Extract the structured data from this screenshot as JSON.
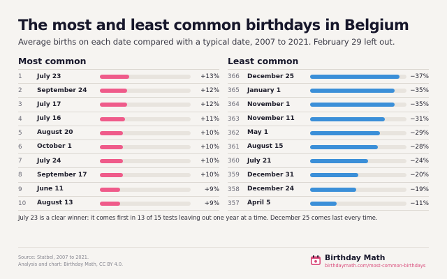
{
  "title": "The most and least common birthdays in Belgium",
  "subtitle": "Average births on each date compared with a typical date, 2007 to 2021. February 29 left out.",
  "colors": {
    "most": "#ef5b8a",
    "least": "#3b8fd8",
    "track": "#e8e4de"
  },
  "chart_data": [
    {
      "type": "bar",
      "title": "Most common",
      "ranks": [
        1,
        2,
        3,
        4,
        5,
        6,
        7,
        8,
        9,
        10
      ],
      "categories": [
        "July 23",
        "September 24",
        "July 17",
        "July 16",
        "August 20",
        "October 1",
        "July 24",
        "September 17",
        "June 11",
        "August 13"
      ],
      "values": [
        13,
        12,
        12,
        11,
        10,
        10,
        10,
        10,
        9,
        9
      ],
      "value_labels": [
        "+13%",
        "+12%",
        "+12%",
        "+11%",
        "+10%",
        "+10%",
        "+10%",
        "+10%",
        "+9%",
        "+9%"
      ],
      "unit": "%",
      "xlim": [
        0,
        40
      ]
    },
    {
      "type": "bar",
      "title": "Least common",
      "ranks": [
        366,
        365,
        364,
        363,
        362,
        361,
        360,
        359,
        358,
        357
      ],
      "categories": [
        "December 25",
        "January 1",
        "November 1",
        "November 11",
        "May 1",
        "August 15",
        "July 21",
        "December 31",
        "December 24",
        "April 5"
      ],
      "values": [
        -37,
        -35,
        -35,
        -31,
        -29,
        -28,
        -24,
        -20,
        -19,
        -11
      ],
      "value_labels": [
        "−37%",
        "−35%",
        "−35%",
        "−31%",
        "−29%",
        "−28%",
        "−24%",
        "−20%",
        "−19%",
        "−11%"
      ],
      "unit": "%",
      "xlim": [
        0,
        40
      ]
    }
  ],
  "note": "July 23 is a clear winner: it comes first in 13 of 15 tests leaving out one year at a time. December 25 comes last every time.",
  "source": {
    "line1": "Source: Statbel, 2007 to 2021.",
    "line2": "Analysis and chart: Birthday Math, CC BY 4.0."
  },
  "brand": {
    "name": "Birthday Math",
    "url": "birthdaymath.com/most-common-birthdays",
    "icon": "calendar-icon"
  }
}
